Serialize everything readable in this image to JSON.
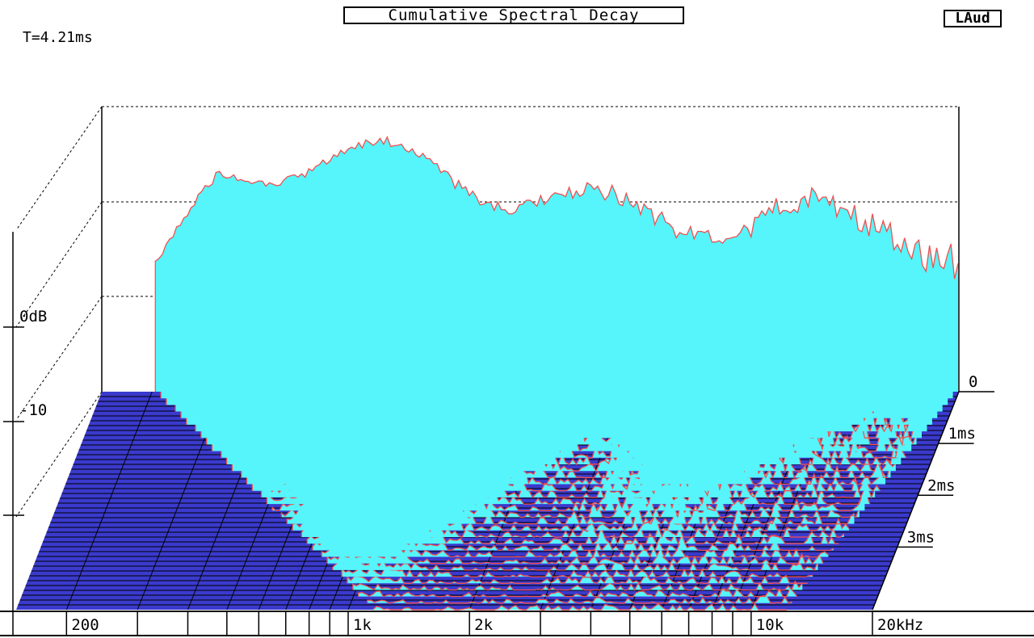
{
  "header": {
    "title": "Cumulative Spectral Decay",
    "brand": "LAud",
    "time_readout": "T=4.21ms"
  },
  "colors": {
    "surface_fill": "#55f5fb",
    "slice_line": "#f05050",
    "floor": "#3a3acd",
    "axis": "#000000"
  },
  "chart_data": {
    "type": "waterfall",
    "title": "Cumulative Spectral Decay",
    "x": {
      "scale": "log",
      "range_hz": [
        150,
        20000
      ],
      "tick_labels": [
        {
          "hz": 200,
          "label": "200"
        },
        {
          "hz": 1000,
          "label": "1k"
        },
        {
          "hz": 2000,
          "label": "2k"
        },
        {
          "hz": 10000,
          "label": "10k"
        },
        {
          "hz": 20000,
          "label": "20kHz"
        }
      ],
      "minor_ticks_hz": [
        300,
        400,
        500,
        600,
        700,
        800,
        900,
        3000,
        4000,
        5000,
        6000,
        7000,
        8000,
        9000
      ]
    },
    "z": {
      "range_ms": [
        0,
        4.21
      ],
      "tick_labels": [
        {
          "ms": 0,
          "label": "0"
        },
        {
          "ms": 1,
          "label": "1ms"
        },
        {
          "ms": 2,
          "label": "2ms"
        },
        {
          "ms": 3,
          "label": "3ms"
        }
      ]
    },
    "y": {
      "tick_labels": [
        {
          "db": 0,
          "label": "0dB"
        },
        {
          "db": -10,
          "label": "-10"
        }
      ]
    },
    "slice_count": 34
  }
}
